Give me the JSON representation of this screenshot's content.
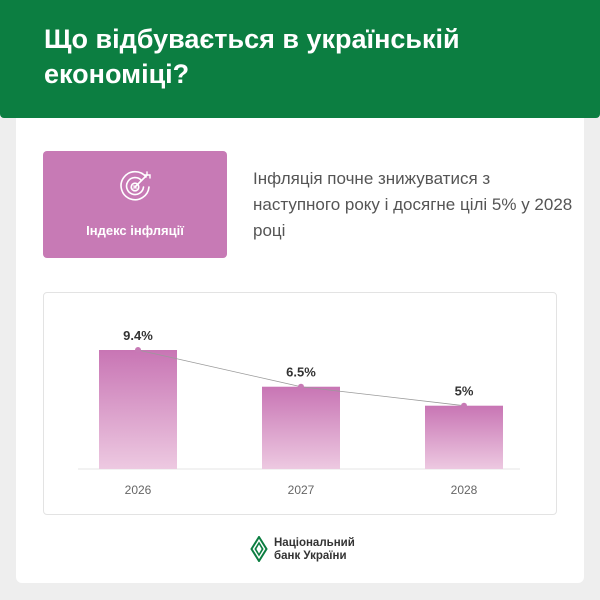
{
  "header": {
    "title": "Що відбувається в українській економіці?"
  },
  "index_box": {
    "label": "Індекс інфляції",
    "icon": "target-hryvnia-icon",
    "color": "#c77ab5"
  },
  "description": {
    "text": "Інфляція почне знижуватися з наступного року і досягне цілі 5% у 2028 році"
  },
  "chart_data": {
    "type": "bar",
    "categories": [
      "2026",
      "2027",
      "2028"
    ],
    "values": [
      9.4,
      6.5,
      5
    ],
    "labels": [
      "9.4%",
      "6.5%",
      "5%"
    ],
    "trend_line": true,
    "title": "",
    "xlabel": "",
    "ylabel": "",
    "ylim": [
      0,
      10
    ],
    "grid": false,
    "colors": {
      "bar_top": "#c875b4",
      "bar_bottom": "#edc9e1",
      "point": "#c77ab5"
    }
  },
  "footer": {
    "logo_icon": "nbu-logo-icon",
    "logo_line1": "Національний",
    "logo_line2": "банк України",
    "logo_color": "#0c7e41"
  }
}
